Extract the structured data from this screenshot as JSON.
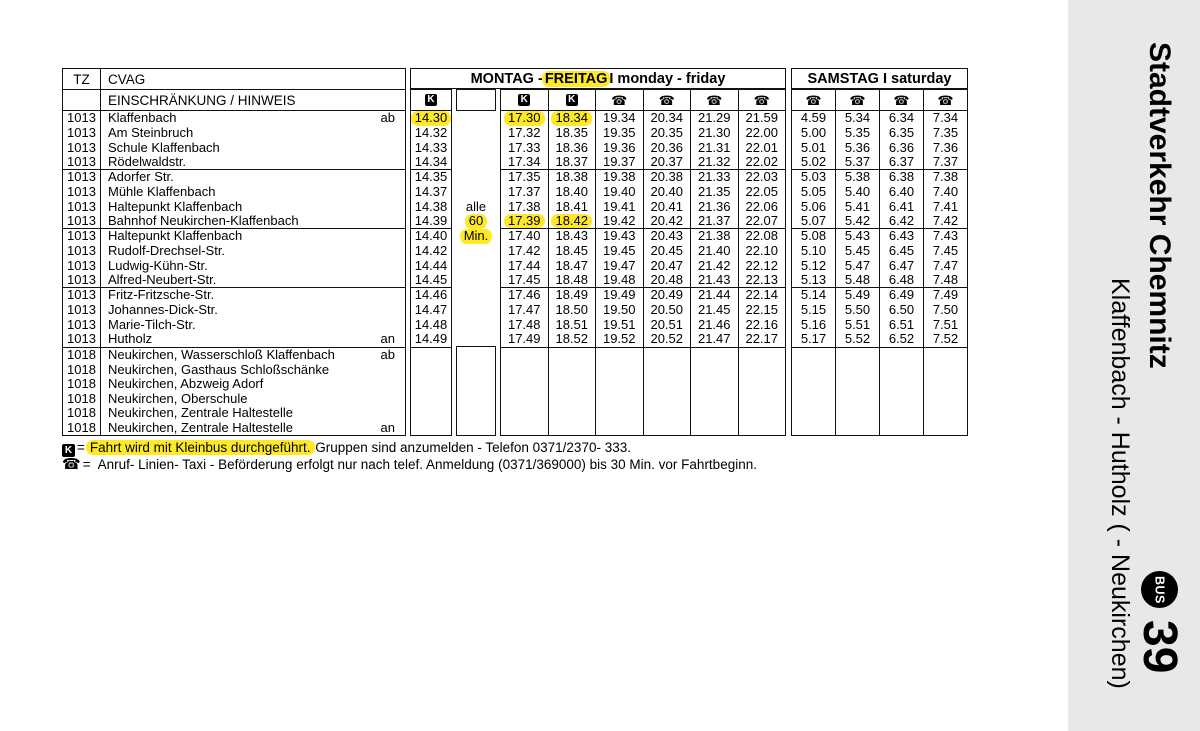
{
  "header": {
    "tz": "TZ",
    "cvag": "CVAG",
    "restriction": "EINSCHRÄNKUNG / HINWEIS",
    "monfri_pre": "MONTAG - ",
    "monfri_hl": "FREITAG",
    "monfri_post": " I monday - friday",
    "samstag": "SAMSTAG I saturday"
  },
  "column_symbols": {
    "first": "K",
    "interval": "",
    "monfri": [
      "K",
      "K",
      "phone",
      "phone",
      "phone",
      "phone"
    ],
    "saturday": [
      "phone",
      "phone",
      "phone",
      "phone"
    ]
  },
  "rows": [
    {
      "tz": "1013",
      "name": "Klaffenbach",
      "mark": "ab",
      "c1": "14.30",
      "c1_hl": true,
      "mid": "",
      "d": [
        "17.30",
        "18.34",
        "19.34",
        "20.34",
        "21.29",
        "21.59"
      ],
      "d_hl": [
        0,
        1
      ],
      "e": [
        "4.59",
        "5.34",
        "6.34",
        "7.34"
      ]
    },
    {
      "tz": "1013",
      "name": "Am Steinbruch",
      "mark": "",
      "c1": "14.32",
      "mid": "",
      "d": [
        "17.32",
        "18.35",
        "19.35",
        "20.35",
        "21.30",
        "22.00"
      ],
      "e": [
        "5.00",
        "5.35",
        "6.35",
        "7.35"
      ]
    },
    {
      "tz": "1013",
      "name": "Schule Klaffenbach",
      "mark": "",
      "c1": "14.33",
      "mid": "",
      "d": [
        "17.33",
        "18.36",
        "19.36",
        "20.36",
        "21.31",
        "22.01"
      ],
      "e": [
        "5.01",
        "5.36",
        "6.36",
        "7.36"
      ]
    },
    {
      "tz": "1013",
      "name": "Rödelwaldstr.",
      "mark": "",
      "c1": "14.34",
      "mid": "",
      "d": [
        "17.34",
        "18.37",
        "19.37",
        "20.37",
        "21.32",
        "22.02"
      ],
      "e": [
        "5.02",
        "5.37",
        "6.37",
        "7.37"
      ],
      "group_end": true
    },
    {
      "tz": "1013",
      "name": "Adorfer Str.",
      "mark": "",
      "c1": "14.35",
      "mid": "",
      "d": [
        "17.35",
        "18.38",
        "19.38",
        "20.38",
        "21.33",
        "22.03"
      ],
      "e": [
        "5.03",
        "5.38",
        "6.38",
        "7.38"
      ]
    },
    {
      "tz": "1013",
      "name": "Mühle Klaffenbach",
      "mark": "",
      "c1": "14.37",
      "mid": "",
      "d": [
        "17.37",
        "18.40",
        "19.40",
        "20.40",
        "21.35",
        "22.05"
      ],
      "e": [
        "5.05",
        "5.40",
        "6.40",
        "7.40"
      ]
    },
    {
      "tz": "1013",
      "name": "Haltepunkt Klaffenbach",
      "mark": "",
      "c1": "14.38",
      "mid": "alle",
      "d": [
        "17.38",
        "18.41",
        "19.41",
        "20.41",
        "21.36",
        "22.06"
      ],
      "e": [
        "5.06",
        "5.41",
        "6.41",
        "7.41"
      ]
    },
    {
      "tz": "1013",
      "name": "Bahnhof Neukirchen-Klaffenbach",
      "mark": "",
      "c1": "14.39",
      "mid": "60",
      "mid_hl": true,
      "d": [
        "17.39",
        "18.42",
        "19.42",
        "20.42",
        "21.37",
        "22.07"
      ],
      "d_hl": [
        0,
        1
      ],
      "e": [
        "5.07",
        "5.42",
        "6.42",
        "7.42"
      ],
      "group_end": true
    },
    {
      "tz": "1013",
      "name": "Haltepunkt Klaffenbach",
      "mark": "",
      "c1": "14.40",
      "mid": "Min.",
      "mid_hl": true,
      "d": [
        "17.40",
        "18.43",
        "19.43",
        "20.43",
        "21.38",
        "22.08"
      ],
      "e": [
        "5.08",
        "5.43",
        "6.43",
        "7.43"
      ]
    },
    {
      "tz": "1013",
      "name": "Rudolf-Drechsel-Str.",
      "mark": "",
      "c1": "14.42",
      "mid": "",
      "d": [
        "17.42",
        "18.45",
        "19.45",
        "20.45",
        "21.40",
        "22.10"
      ],
      "e": [
        "5.10",
        "5.45",
        "6.45",
        "7.45"
      ]
    },
    {
      "tz": "1013",
      "name": "Ludwig-Kühn-Str.",
      "mark": "",
      "c1": "14.44",
      "mid": "",
      "d": [
        "17.44",
        "18.47",
        "19.47",
        "20.47",
        "21.42",
        "22.12"
      ],
      "e": [
        "5.12",
        "5.47",
        "6.47",
        "7.47"
      ]
    },
    {
      "tz": "1013",
      "name": "Alfred-Neubert-Str.",
      "mark": "",
      "c1": "14.45",
      "mid": "",
      "d": [
        "17.45",
        "18.48",
        "19.48",
        "20.48",
        "21.43",
        "22.13"
      ],
      "e": [
        "5.13",
        "5.48",
        "6.48",
        "7.48"
      ],
      "group_end": true
    },
    {
      "tz": "1013",
      "name": "Fritz-Fritzsche-Str.",
      "mark": "",
      "c1": "14.46",
      "mid": "",
      "d": [
        "17.46",
        "18.49",
        "19.49",
        "20.49",
        "21.44",
        "22.14"
      ],
      "e": [
        "5.14",
        "5.49",
        "6.49",
        "7.49"
      ]
    },
    {
      "tz": "1013",
      "name": "Johannes-Dick-Str.",
      "mark": "",
      "c1": "14.47",
      "mid": "",
      "d": [
        "17.47",
        "18.50",
        "19.50",
        "20.50",
        "21.45",
        "22.15"
      ],
      "e": [
        "5.15",
        "5.50",
        "6.50",
        "7.50"
      ]
    },
    {
      "tz": "1013",
      "name": "Marie-Tilch-Str.",
      "mark": "",
      "c1": "14.48",
      "mid": "",
      "d": [
        "17.48",
        "18.51",
        "19.51",
        "20.51",
        "21.46",
        "22.16"
      ],
      "e": [
        "5.16",
        "5.51",
        "6.51",
        "7.51"
      ]
    },
    {
      "tz": "1013",
      "name": "Hutholz",
      "mark": "an",
      "c1": "14.49",
      "mid": "",
      "d": [
        "17.49",
        "18.52",
        "19.52",
        "20.52",
        "21.47",
        "22.17"
      ],
      "e": [
        "5.17",
        "5.52",
        "6.52",
        "7.52"
      ]
    }
  ],
  "neukirchen_rows": [
    {
      "tz": "1018",
      "name": "Neukirchen, Wasserschloß Klaffenbach",
      "mark": "ab"
    },
    {
      "tz": "1018",
      "name": "Neukirchen, Gasthaus Schloßschänke",
      "mark": ""
    },
    {
      "tz": "1018",
      "name": "Neukirchen, Abzweig Adorf",
      "mark": ""
    },
    {
      "tz": "1018",
      "name": "Neukirchen, Oberschule",
      "mark": ""
    },
    {
      "tz": "1018",
      "name": "Neukirchen, Zentrale Haltestelle",
      "mark": ""
    },
    {
      "tz": "1018",
      "name": "Neukirchen, Zentrale Haltestelle",
      "mark": "an"
    }
  ],
  "footnotes": {
    "k_symbol": "K",
    "k_eq": "=",
    "k_hl": "Fahrt wird mit Kleinbus durchgeführt.",
    "k_rest": " Gruppen sind anzumelden -  Telefon 0371/2370- 333.",
    "phone_symbol": "☎",
    "phone_eq": "=",
    "phone_text": " Anruf- Linien- Taxi -  Beförderung erfolgt nur nach telef. Anmeldung (0371/369000) bis 30 Min. vor Fahrtbeginn."
  },
  "sidebar": {
    "title": "Stadtverkehr Chemnitz",
    "subtitle": "Klaffenbach - Hutholz ( - Neukirchen)",
    "badge": "BUS",
    "line_number": "39"
  },
  "colors": {
    "highlight": "#ffe927",
    "sidebar_bg": "#e8e8e8",
    "ink": "#000000"
  }
}
